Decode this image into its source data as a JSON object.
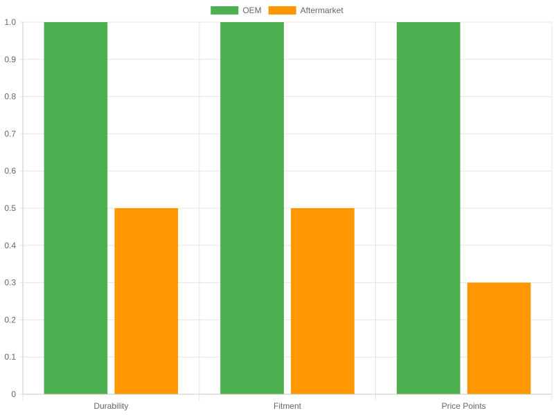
{
  "chart_data": {
    "type": "bar",
    "categories": [
      "Durability",
      "Fitment",
      "Price Points"
    ],
    "series": [
      {
        "name": "OEM",
        "values": [
          1.0,
          1.0,
          1.0
        ],
        "color": "#4caf50"
      },
      {
        "name": "Aftermarket",
        "values": [
          0.5,
          0.5,
          0.3
        ],
        "color": "#ff9800"
      }
    ],
    "ylim": [
      0,
      1.0
    ],
    "yticks": [
      "0",
      "0.1",
      "0.2",
      "0.3",
      "0.4",
      "0.5",
      "0.6",
      "0.7",
      "0.8",
      "0.9",
      "1.0"
    ],
    "grid": true,
    "legend_position": "top-center",
    "colors": {
      "grid": "#e5e5e5",
      "axis": "#c8c8c8",
      "tick_text": "#666666"
    }
  }
}
